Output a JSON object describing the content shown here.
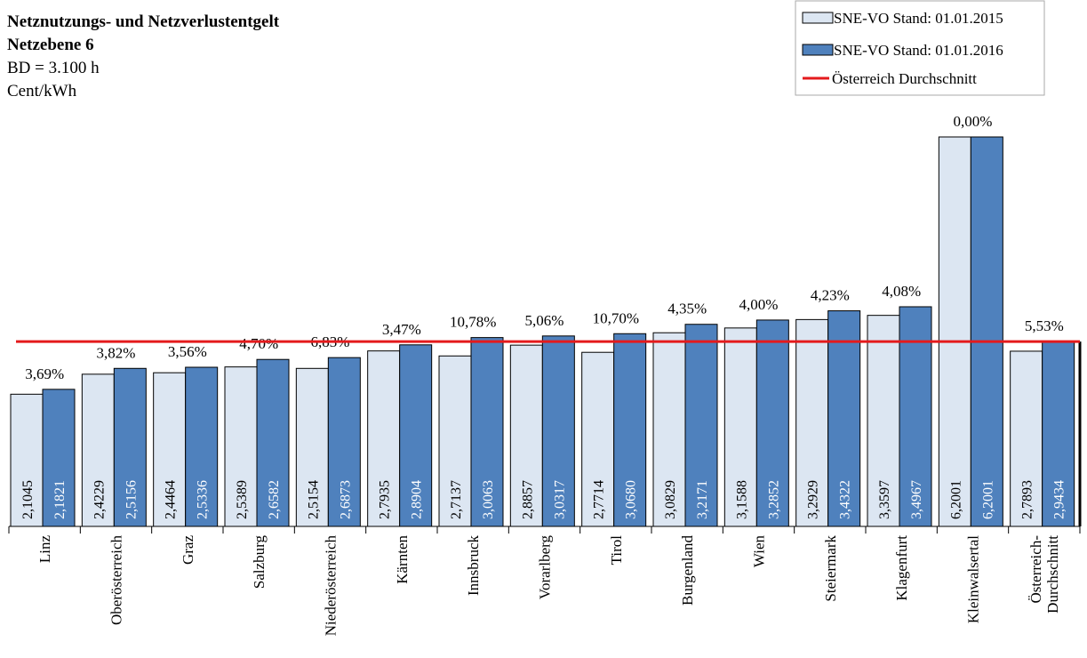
{
  "chart_data": {
    "type": "bar",
    "title": "Netznutzungs- und Netzverlustentgelt",
    "subtitle": [
      "Netzebene 6",
      "BD = 3.100 h",
      "Cent/kWh"
    ],
    "categories": [
      "Linz",
      "Oberösterreich",
      "Graz",
      "Salzburg",
      "Niederösterreich",
      "Kärnten",
      "Innsbruck",
      "Vorarlberg",
      "Tirol",
      "Burgenland",
      "Wien",
      "Steiermark",
      "Klagenfurt",
      "Kleinwalsertal",
      "Österreich- Durchschnitt"
    ],
    "series": [
      {
        "name": "SNE-VO Stand: 01.01.2015",
        "color": "#dce6f2",
        "values": [
          2.1045,
          2.4229,
          2.4464,
          2.5389,
          2.5154,
          2.7935,
          2.7137,
          2.8857,
          2.7714,
          3.0829,
          3.1588,
          3.2929,
          3.3597,
          6.2001,
          2.7893
        ],
        "value_labels": [
          "2,1045",
          "2,4229",
          "2,4464",
          "2,5389",
          "2,5154",
          "2,7935",
          "2,7137",
          "2,8857",
          "2,7714",
          "3,0829",
          "3,1588",
          "3,2929",
          "3,3597",
          "6,2001",
          "2,7893"
        ]
      },
      {
        "name": "SNE-VO Stand: 01.01.2016",
        "color": "#4f81bd",
        "values": [
          2.1821,
          2.5156,
          2.5336,
          2.6582,
          2.6873,
          2.8904,
          3.0063,
          3.0317,
          3.068,
          3.2171,
          3.2852,
          3.4322,
          3.4967,
          6.2001,
          2.9434
        ],
        "value_labels": [
          "2,1821",
          "2,5156",
          "2,5336",
          "2,6582",
          "2,6873",
          "2,8904",
          "3,0063",
          "3,0317",
          "3,0680",
          "3,2171",
          "3,2852",
          "3,4322",
          "3,4967",
          "6,2001",
          "2,9434"
        ]
      }
    ],
    "changes": [
      3.69,
      3.82,
      3.56,
      4.7,
      6.83,
      3.47,
      10.78,
      5.06,
      10.7,
      4.35,
      4.0,
      4.23,
      4.08,
      0.0,
      5.53
    ],
    "change_labels": [
      "3,69%",
      "3,82%",
      "3,56%",
      "4,70%",
      "6,83%",
      "3,47%",
      "10,78%",
      "5,06%",
      "10,70%",
      "4,35%",
      "4,00%",
      "4,23%",
      "4,08%",
      "0,00%",
      "5,53%"
    ],
    "reference_line": {
      "name": "Österreich Durchschnitt",
      "value": 2.9434,
      "color": "#e41a1c"
    },
    "legend": "top-right"
  }
}
